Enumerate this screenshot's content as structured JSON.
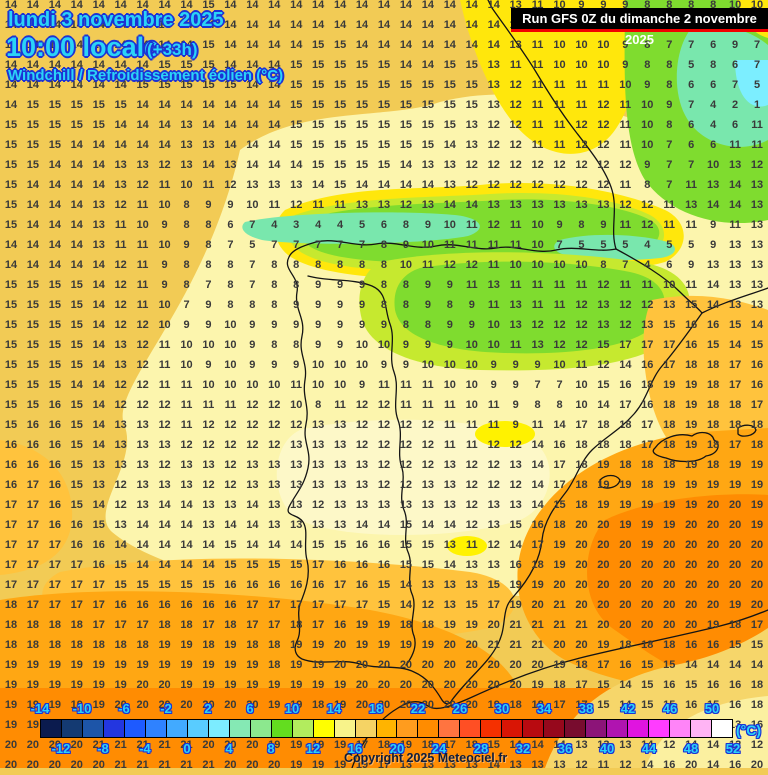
{
  "header": {
    "date_line": "lundi 3 novembre 2025",
    "time_line": "10:00 locale",
    "offset": "(+33h)",
    "param_line": "Windchill / Refroidissement éolien (°C)",
    "run_line": "Run GFS 0Z du dimanche 2 novembre 2025"
  },
  "footer": {
    "copyright": "Copyright 2025 Meteociel.fr",
    "unit_label": "(°C)"
  },
  "scale": {
    "min": -14,
    "max": 52,
    "step": 2,
    "top_labels": [
      -14,
      -10,
      -6,
      -2,
      2,
      6,
      10,
      14,
      18,
      22,
      26,
      30,
      34,
      38,
      42,
      46,
      50
    ],
    "bottom_labels": [
      -12,
      -8,
      -4,
      0,
      4,
      8,
      12,
      16,
      20,
      24,
      28,
      32,
      36,
      40,
      44,
      48,
      52
    ],
    "colors": [
      "#0b1b4e",
      "#143a72",
      "#1d55a8",
      "#2336e0",
      "#1e5aff",
      "#2f82ff",
      "#42aaff",
      "#59ccff",
      "#7cecff",
      "#85e9b4",
      "#8ce88e",
      "#63dd1f",
      "#b2ec5e",
      "#ffff00",
      "#f8f38a",
      "#f5d364",
      "#ffb400",
      "#ff9c1e",
      "#ff8c00",
      "#ff7440",
      "#ff4f24",
      "#f53000",
      "#d91505",
      "#b80a10",
      "#96081c",
      "#780c2e",
      "#8c1478",
      "#b014b0",
      "#e014e0",
      "#ff3cff",
      "#ff84f8",
      "#ffb4f4",
      "#ffffff"
    ]
  },
  "colors": {
    "base_gold": "#f2cb55",
    "pale_yellow": "#fcf5ad",
    "cream": "#fdf8c8",
    "yellow": "#ffe70c",
    "yellow_green": "#c6e92f",
    "green": "#7fdc2f",
    "mint": "#79e7ad",
    "cyan_patch": "#7ceeff",
    "light_orange": "#ffc33d",
    "orange": "#ffa713",
    "deep_orange": "#ff8c02",
    "africa_gold": "#f6d66a",
    "title_cyan": "#2bd3f7",
    "title_outline": "#1c33d4",
    "number_color": "#3a3a3a",
    "run_box_bg": "#000000",
    "run_box_red": "#f20000"
  },
  "grid": {
    "cols": 35,
    "rows": [
      "14 14 14 14 14 14 14 14 14 15 14 14 14 14 14 14 14 14 14 14 14 14 14 13 11 10 9 9 9 8 8 8 8 10 10",
      "14 14 14 14 14 14 14 14 14 14 14 14 14 14 14 14 14 14 14 14 14 14 14 13 11 10 10 9 9 8 8 8 8 9 9",
      "14 14 14 14 14 14 14 14 14 15 14 14 14 14 15 15 14 14 14 14 14 14 14 13 11 10 10 10 9 8 7 7 6 9 7",
      "14 14 14 14 14 14 14 15 15 15 14 14 14 15 15 15 15 15 14 14 15 15 13 11 11 10 10 10 9 8 8 5 8 6 7",
      "14 14 14 14 14 14 15 15 15 15 15 14 14 15 15 15 15 15 15 15 15 15 13 12 11 11 11 11 10 9 8 6 6 7 5",
      "14 15 15 15 15 15 14 14 14 14 14 14 14 15 15 15 15 15 15 15 15 15 13 12 11 11 11 12 11 10 9 7 4 2 1",
      "15 15 15 15 15 14 14 14 13 14 14 14 14 15 15 15 15 15 15 15 15 13 12 12 11 11 12 12 11 10 8 6 4 6 11",
      "15 15 15 14 14 14 14 14 13 13 14 14 14 15 15 15 15 15 15 15 14 13 12 12 11 11 12 12 11 10 7 6 6 11 11",
      "15 15 14 14 14 13 13 12 13 14 13 14 14 14 15 15 15 15 14 13 13 12 12 12 12 12 12 12 12 9 7 7 10 13 12",
      "15 14 14 14 14 13 12 11 10 11 12 13 13 13 14 15 14 14 14 14 13 12 12 12 12 12 12 12 11 8 7 11 13 14 13",
      "15 14 14 14 13 12 11 10 8 9 9 10 11 12 11 11 13 13 12 13 14 14 13 13 13 13 13 13 12 12 11 13 14 14 13",
      "15 14 14 14 13 11 10 9 8 8 6 7 4 3 4 4 5 6 8 9 10 11 12 11 10 9 8 9 11 12 11 11 9 11 13",
      "14 14 14 14 13 11 11 10 9 8 7 5 7 7 7 7 7 8 9 10 11 11 11 11 10 7 5 5 5 4 5 5 9 13 13",
      "14 14 14 14 14 12 11 9 8 8 8 7 8 8 8 8 8 8 10 11 12 12 11 10 10 10 10 8 7 4 6 9 13 13 13",
      "15 15 15 15 14 12 11 9 8 7 8 7 8 8 9 9 9 8 8 9 9 11 13 11 11 11 11 12 11 11 10 11 14 13 13",
      "15 15 15 15 14 12 11 10 7 9 8 8 8 9 9 9 9 8 8 9 8 9 11 13 11 11 12 13 12 12 13 15 14 13 13",
      "15 15 15 15 14 12 12 10 9 9 10 9 9 9 9 9 9 9 8 8 9 9 10 13 12 12 12 13 12 13 15 16 16 15 14",
      "15 15 15 15 14 13 12 11 10 10 10 9 8 8 9 9 10 10 9 9 9 10 10 11 13 12 12 15 17 17 17 16 15 14 15",
      "15 15 15 15 14 13 12 11 10 9 10 9 9 9 10 10 10 9 9 10 10 10 9 9 9 10 11 12 14 16 17 18 18 17 16",
      "15 15 15 14 14 12 12 11 11 10 10 10 10 11 10 10 9 11 11 11 10 10 9 9 7 7 10 15 16 18 19 19 18 17 16",
      "15 15 16 15 14 12 12 12 11 11 11 12 12 10 8 11 12 12 11 11 11 10 11 9 8 8 10 14 17 16 18 19 18 18 17",
      "15 16 16 15 14 13 13 12 11 12 12 12 12 12 13 13 12 12 12 12 11 11 11 9 11 14 17 18 18 17 18 19 18 18 18",
      "16 16 16 15 14 13 13 13 12 12 12 12 12 13 13 13 12 12 12 12 11 11 12 12 14 16 18 18 18 17 18 19 18 17 18",
      "16 16 16 15 13 13 13 12 13 13 12 13 13 13 13 13 13 12 12 12 13 12 12 13 14 17 18 19 18 18 18 19 18 19 19",
      "16 17 16 15 13 12 13 13 13 12 12 13 13 13 13 13 13 12 12 13 13 12 12 12 14 17 18 19 19 18 19 19 19 19 19",
      "17 17 16 15 14 12 13 14 14 13 13 14 13 13 12 13 13 13 13 13 13 12 13 13 14 15 18 19 19 19 19 19 20 20 19",
      "17 17 16 16 15 13 14 14 14 13 14 14 13 13 13 13 14 14 15 14 14 12 13 15 16 18 20 20 19 19 19 20 20 20 19",
      "17 17 17 16 16 14 14 14 14 14 15 14 14 14 15 15 16 16 15 15 13 11 12 14 17 19 20 20 20 19 20 20 20 20 20",
      "17 17 17 17 16 15 14 14 14 14 15 15 15 15 17 16 16 16 15 15 14 13 13 16 18 19 20 20 20 20 20 20 20 20 20",
      "17 17 17 17 17 15 15 15 15 15 16 16 16 16 16 17 16 15 14 13 13 13 15 19 19 20 20 20 20 20 20 20 20 20 20",
      "18 17 17 17 17 16 16 16 16 16 16 17 17 17 17 17 17 15 14 12 13 15 17 19 20 21 20 20 20 20 20 20 20 19 20",
      "18 18 18 18 17 17 17 18 18 17 18 17 17 18 17 16 19 19 18 18 19 19 20 21 21 21 21 20 20 20 20 20 19 18 17",
      "18 18 18 18 18 18 18 19 19 18 19 18 18 19 19 20 19 19 19 19 20 20 21 21 21 20 20 19 18 18 18 16 16 15 15",
      "19 19 19 19 19 19 19 19 19 19 19 19 18 19 19 20 20 20 20 20 20 20 20 20 20 19 18 17 16 15 15 14 14 14 14",
      "19 19 19 19 19 19 20 20 19 19 19 19 19 19 19 19 20 20 20 20 20 20 20 20 19 18 17 15 14 15 16 15 16 16 18",
      "19 19 19 19 19 20 20 20 20 20 20 20 19 19 18 19 20 20 20 20 20 20 19 18 18 17 17 15 14 15 15 16 15 16 18",
      "19 19 20 20 20 20 20 20 20 20 20 20 20 19 19 19 19 18 18 18 18 17 17 16 16 15 15 14 14 13 13 13 13 13 16",
      "20 20 20 20 21 21 21 21 21 20 20 20 19 19 19 19 17 18 19 18 17 18 15 14 14 14 13 13 13 14 12 14 14 12 12",
      "20 20 20 20 20 21 21 21 21 21 20 20 20 19 19 19 19 17 13 13 13 13 14 13 13 13 12 11 12 14 16 20 14 16 20"
    ]
  }
}
